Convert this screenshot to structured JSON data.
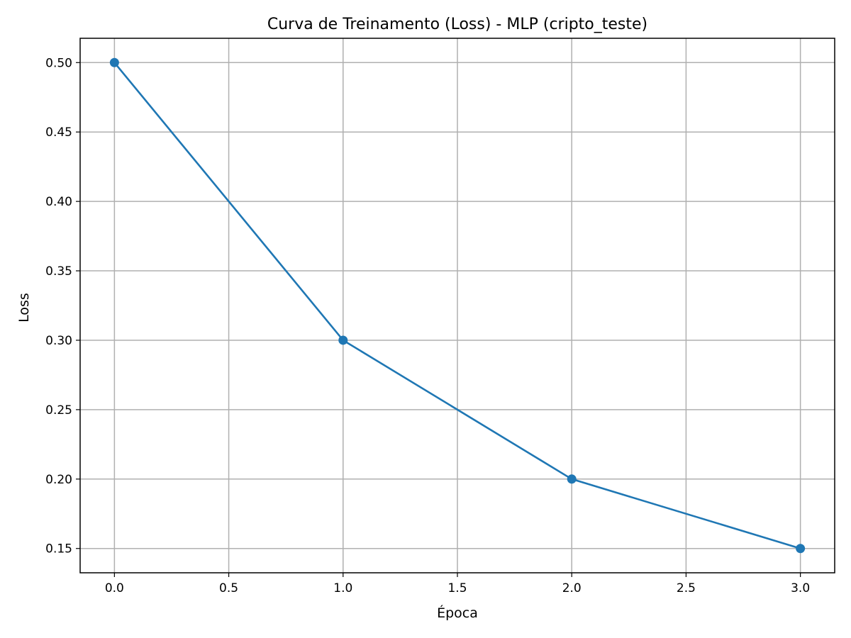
{
  "chart_data": {
    "type": "line",
    "title": "Curva de Treinamento (Loss) - MLP (cripto_teste)",
    "xlabel": "Época",
    "ylabel": "Loss",
    "xlim": [
      -0.15,
      3.15
    ],
    "ylim": [
      0.1325,
      0.5175
    ],
    "xticks": [
      "0.0",
      "0.5",
      "1.0",
      "1.5",
      "2.0",
      "2.5",
      "3.0"
    ],
    "yticks": [
      "0.15",
      "0.20",
      "0.25",
      "0.30",
      "0.35",
      "0.40",
      "0.45",
      "0.50"
    ],
    "grid": true,
    "marker": "circle",
    "series": [
      {
        "x": [
          0,
          1,
          2,
          3
        ],
        "values": [
          0.5,
          0.3,
          0.2,
          0.15
        ],
        "color": "#1f77b4"
      }
    ]
  }
}
